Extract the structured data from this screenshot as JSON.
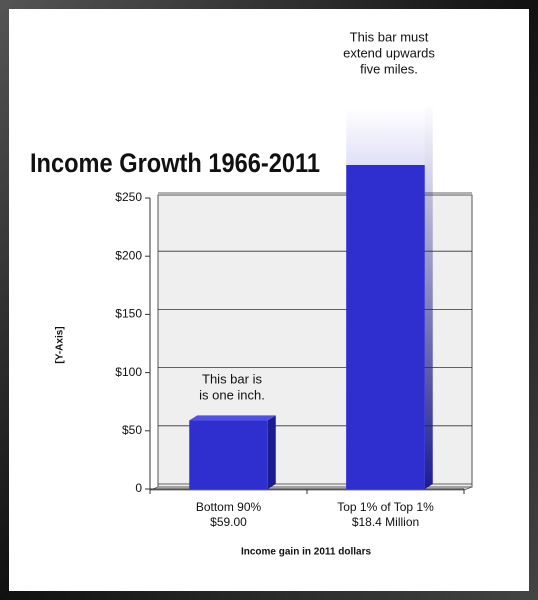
{
  "chart_data": {
    "type": "bar",
    "title": "Income Growth 1966-2011",
    "ylabel": "[Y-Axis]",
    "xlabel": "Income gain in 2011 dollars",
    "categories": [
      "Bottom 90%",
      "Top 1% of Top 1%"
    ],
    "values": [
      59,
      18400000
    ],
    "value_labels": [
      "$59.00",
      "$18.4 Million"
    ],
    "color": "#2f2fd0",
    "ylim": [
      0,
      250
    ],
    "yticks": [
      0,
      {
        "value": 50,
        "label": "$50"
      },
      {
        "value": 100,
        "label": "$100"
      },
      {
        "value": 150,
        "label": "$150"
      },
      {
        "value": 200,
        "label": "$200"
      },
      {
        "value": 250,
        "label": "$250"
      }
    ],
    "grid": true,
    "annotations": [
      {
        "lines": [
          "This bar must",
          "extend upwards",
          "five miles."
        ]
      },
      {
        "lines": [
          "This bar is",
          "is one inch."
        ]
      }
    ]
  }
}
